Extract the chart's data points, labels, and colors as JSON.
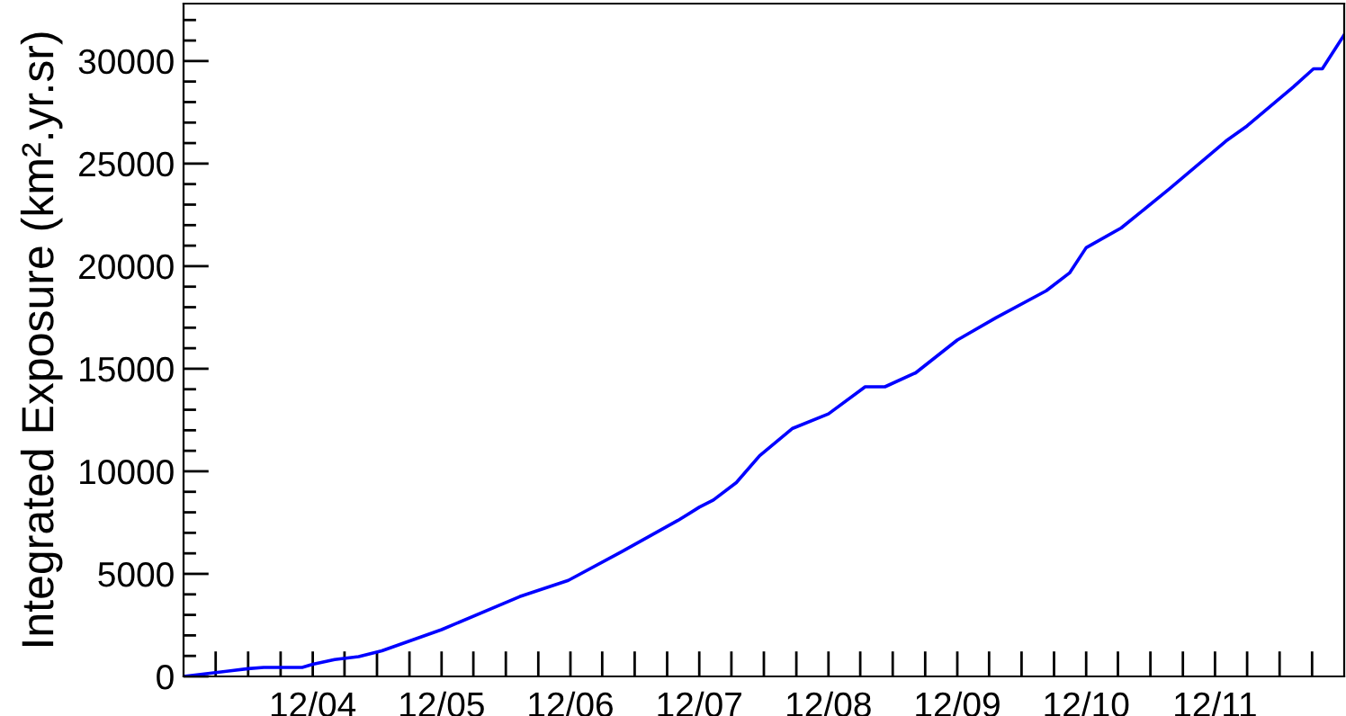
{
  "chart_data": {
    "type": "line",
    "ylabel": "Integrated Exposure (km².yr.sr)",
    "x": [
      "2003-12-01",
      "2004-06-01",
      "2004-07-15",
      "2004-11-01",
      "2004-12-01",
      "2005-02-01",
      "2005-04-10",
      "2005-06-15",
      "2005-12-01",
      "2006-07-10",
      "2006-11-25",
      "2007-04-25",
      "2007-10-01",
      "2007-12-01",
      "2008-01-10",
      "2008-03-15",
      "2008-05-20",
      "2008-08-20",
      "2008-12-01",
      "2009-03-15",
      "2009-05-10",
      "2009-08-05",
      "2009-12-01",
      "2010-03-20",
      "2010-08-10",
      "2010-10-15",
      "2010-12-01",
      "2011-03-10",
      "2011-07-25",
      "2012-01-01",
      "2012-03-01",
      "2012-07-10",
      "2012-09-05",
      "2012-09-30",
      "2012-12-01"
    ],
    "series": [
      {
        "color": "#0000ff",
        "values": [
          0,
          380,
          440,
          440,
          590,
          820,
          965,
          1250,
          2280,
          3890,
          4680,
          6080,
          7600,
          8250,
          8600,
          9450,
          10760,
          12080,
          12800,
          14120,
          14120,
          14800,
          16400,
          17480,
          18800,
          19670,
          20900,
          21860,
          23770,
          26100,
          26840,
          28740,
          29620,
          29620,
          31280
        ]
      }
    ],
    "xlim": [
      "2003-12-01",
      "2012-12-01"
    ],
    "xticks": [
      {
        "value": "2004-03-01",
        "label": null
      },
      {
        "value": "2004-06-01",
        "label": null
      },
      {
        "value": "2004-09-01",
        "label": null
      },
      {
        "value": "2004-12-01",
        "label": "12/04"
      },
      {
        "value": "2005-03-01",
        "label": null
      },
      {
        "value": "2005-06-01",
        "label": null
      },
      {
        "value": "2005-09-01",
        "label": null
      },
      {
        "value": "2005-12-01",
        "label": "12/05"
      },
      {
        "value": "2006-03-01",
        "label": null
      },
      {
        "value": "2006-06-01",
        "label": null
      },
      {
        "value": "2006-09-01",
        "label": null
      },
      {
        "value": "2006-12-01",
        "label": "12/06"
      },
      {
        "value": "2007-03-01",
        "label": null
      },
      {
        "value": "2007-06-01",
        "label": null
      },
      {
        "value": "2007-09-01",
        "label": null
      },
      {
        "value": "2007-12-01",
        "label": "12/07"
      },
      {
        "value": "2008-03-01",
        "label": null
      },
      {
        "value": "2008-06-01",
        "label": null
      },
      {
        "value": "2008-09-01",
        "label": null
      },
      {
        "value": "2008-12-01",
        "label": "12/08"
      },
      {
        "value": "2009-03-01",
        "label": null
      },
      {
        "value": "2009-06-01",
        "label": null
      },
      {
        "value": "2009-09-01",
        "label": null
      },
      {
        "value": "2009-12-01",
        "label": "12/09"
      },
      {
        "value": "2010-03-01",
        "label": null
      },
      {
        "value": "2010-06-01",
        "label": null
      },
      {
        "value": "2010-09-01",
        "label": null
      },
      {
        "value": "2010-12-01",
        "label": "12/10"
      },
      {
        "value": "2011-03-01",
        "label": null
      },
      {
        "value": "2011-06-01",
        "label": null
      },
      {
        "value": "2011-09-01",
        "label": null
      },
      {
        "value": "2011-12-01",
        "label": "12/11"
      },
      {
        "value": "2012-03-01",
        "label": null
      },
      {
        "value": "2012-06-01",
        "label": null
      },
      {
        "value": "2012-09-01",
        "label": null
      }
    ],
    "ylim": [
      0,
      32800
    ],
    "yticks": [
      0,
      {
        "value": 1000,
        "label": null
      },
      {
        "value": 2000,
        "label": null
      },
      {
        "value": 3000,
        "label": null
      },
      {
        "value": 4000,
        "label": null
      },
      5000,
      {
        "value": 6000,
        "label": null
      },
      {
        "value": 7000,
        "label": null
      },
      {
        "value": 8000,
        "label": null
      },
      {
        "value": 9000,
        "label": null
      },
      10000,
      {
        "value": 11000,
        "label": null
      },
      {
        "value": 12000,
        "label": null
      },
      {
        "value": 13000,
        "label": null
      },
      {
        "value": 14000,
        "label": null
      },
      15000,
      {
        "value": 16000,
        "label": null
      },
      {
        "value": 17000,
        "label": null
      },
      {
        "value": 18000,
        "label": null
      },
      {
        "value": 19000,
        "label": null
      },
      20000,
      {
        "value": 21000,
        "label": null
      },
      {
        "value": 22000,
        "label": null
      },
      {
        "value": 23000,
        "label": null
      },
      {
        "value": 24000,
        "label": null
      },
      25000,
      {
        "value": 26000,
        "label": null
      },
      {
        "value": 27000,
        "label": null
      },
      {
        "value": 28000,
        "label": null
      },
      {
        "value": 29000,
        "label": null
      },
      30000,
      {
        "value": 31000,
        "label": null
      },
      {
        "value": 32000,
        "label": null
      }
    ],
    "grid": false,
    "legend": false
  }
}
